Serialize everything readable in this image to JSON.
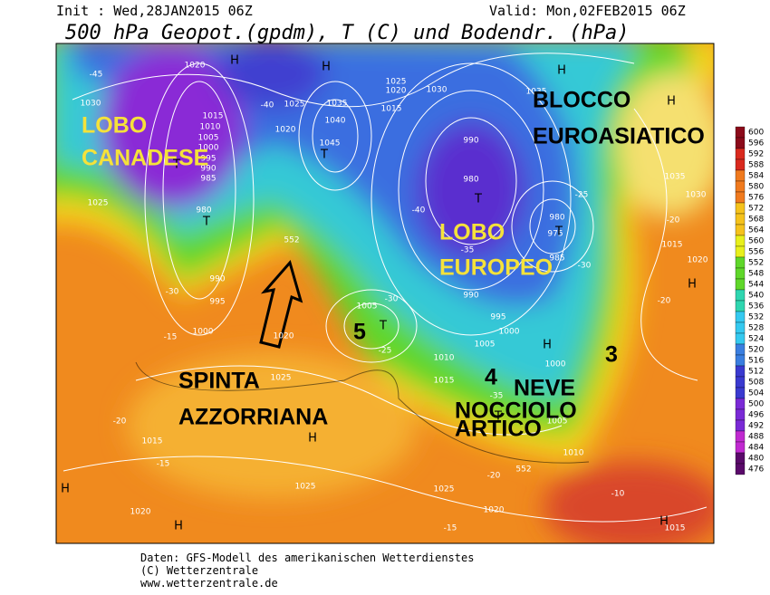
{
  "header": {
    "init": "Init : Wed,28JAN2015 06Z",
    "valid": "Valid: Mon,02FEB2015 06Z",
    "title": "500 hPa Geopot.(gpdm), T (C) und Bodendr. (hPa)"
  },
  "annotations": [
    {
      "lines": [
        "LOBO",
        "CANADESE"
      ]
    },
    {
      "lines": [
        "BLOCCO",
        "EUROASIATICO"
      ]
    },
    {
      "lines": [
        "LOBO",
        "EUROPEO"
      ]
    },
    {
      "lines": [
        "SPINTA",
        "AZZORRIANA"
      ]
    },
    {
      "lines": [
        "5"
      ]
    },
    {
      "lines": [
        "4"
      ]
    },
    {
      "lines": [
        "3"
      ]
    },
    {
      "lines": [
        "NEVE"
      ]
    },
    {
      "lines": [
        "NOCCIOLO",
        "ARTICO"
      ]
    }
  ],
  "map_labels": [
    "1020",
    "1030",
    "-45",
    "1015",
    "1010",
    "1005",
    "1000",
    "995",
    "990",
    "985",
    "1025",
    "1035",
    "1040",
    "1045",
    "-40",
    "1020",
    "1025",
    "980",
    "990",
    "995",
    "1000",
    "-30",
    "-15",
    "1020",
    "1025",
    "1015",
    "-15",
    "1025",
    "1020",
    "-20",
    "1025",
    "1020",
    "1030",
    "1015",
    "990",
    "980",
    "-40",
    "-35",
    "990",
    "995",
    "1000",
    "1005",
    "1010",
    "1015",
    "1005",
    "-25",
    "-30",
    "980",
    "975",
    "985",
    "-30",
    "-25",
    "1035",
    "1030",
    "-20",
    "1015",
    "1020",
    "-20",
    "1000",
    "1005",
    "1010",
    "-35",
    "-20",
    "552",
    "-10",
    "1015",
    "1025",
    "-15",
    "1020",
    "1035",
    "552"
  ],
  "pressure_centers": [
    "H",
    "H",
    "H",
    "H",
    "H",
    "H",
    "H",
    "H",
    "H",
    "H",
    "T",
    "T",
    "T",
    "T",
    "T",
    "T",
    "T"
  ],
  "colorbar": {
    "levels": [
      600,
      596,
      592,
      588,
      584,
      580,
      576,
      572,
      568,
      564,
      560,
      556,
      552,
      548,
      544,
      540,
      536,
      532,
      528,
      524,
      520,
      516,
      512,
      508,
      504,
      500,
      496,
      492,
      488,
      484,
      480,
      476
    ]
  },
  "footer": [
    "Daten: GFS-Modell des amerikanischen Wetterdienstes",
    "(C) Wetterzentrale",
    "www.wetterzentrale.de"
  ]
}
